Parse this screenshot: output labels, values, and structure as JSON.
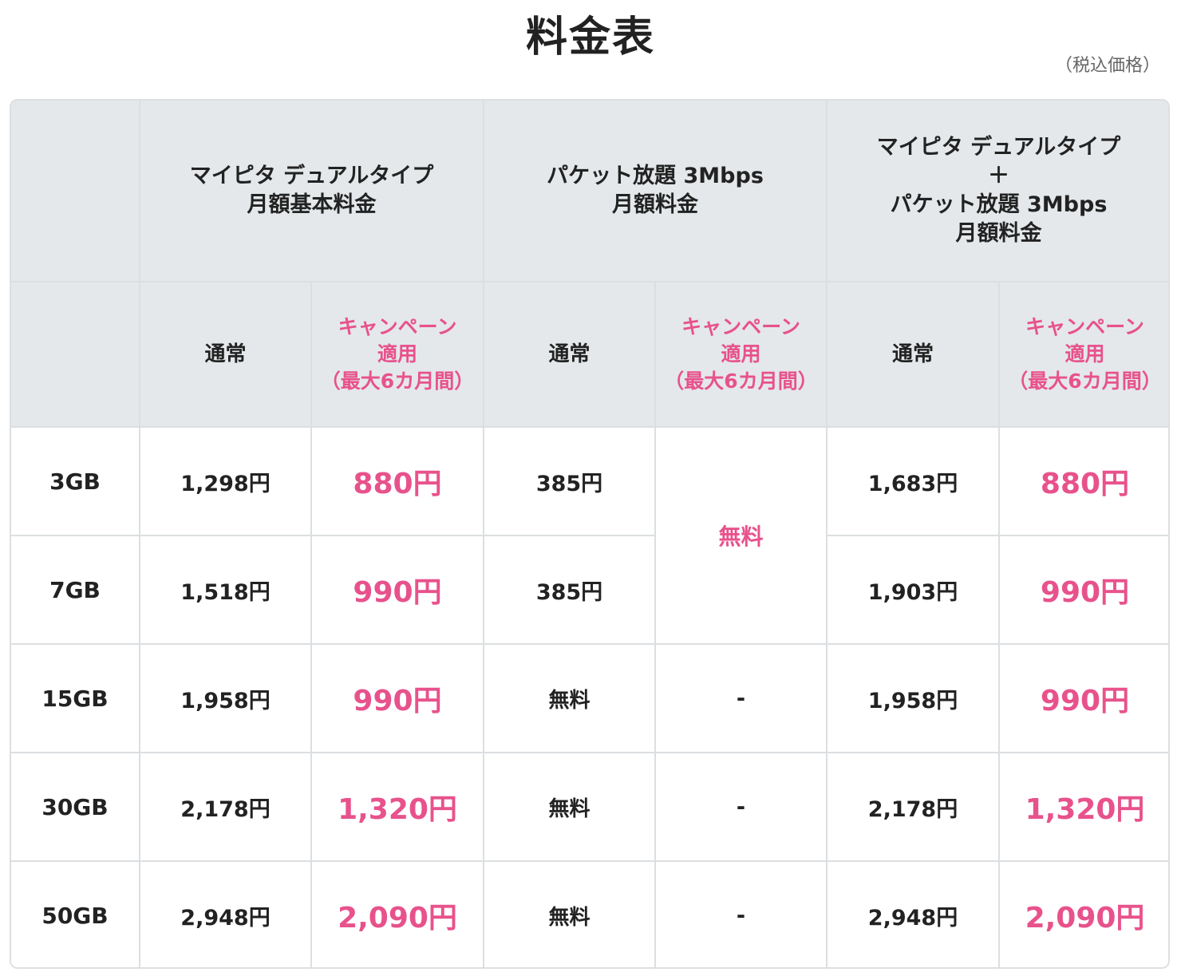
{
  "title": "料金表",
  "tax_note": "（税込価格）",
  "header": {
    "group_1": [
      "マイピタ デュアルタイプ",
      "月額基本料金"
    ],
    "group_2": [
      "パケット放題 3Mbps",
      "月額料金"
    ],
    "group_3": [
      "マイピタ デュアルタイプ",
      "＋",
      "パケット放題 3Mbps",
      "月額料金"
    ],
    "normal_label": "通常",
    "campaign_label": [
      "キャンペーン",
      "適用",
      "（最大6カ月間）"
    ]
  },
  "colors": {
    "accent_pink": "#e8528c",
    "header_bg": "#e4e8ea",
    "border": "#dcdfe1"
  },
  "rows": [
    {
      "plan": "3GB",
      "base_normal": "1,298円",
      "base_campaign": "880円",
      "packet_normal": "385円",
      "packet_campaign": "無料",
      "total_normal": "1,683円",
      "total_campaign": "880円"
    },
    {
      "plan": "7GB",
      "base_normal": "1,518円",
      "base_campaign": "990円",
      "packet_normal": "385円",
      "packet_campaign": "",
      "total_normal": "1,903円",
      "total_campaign": "990円"
    },
    {
      "plan": "15GB",
      "base_normal": "1,958円",
      "base_campaign": "990円",
      "packet_normal": "無料",
      "packet_campaign": "-",
      "total_normal": "1,958円",
      "total_campaign": "990円"
    },
    {
      "plan": "30GB",
      "base_normal": "2,178円",
      "base_campaign": "1,320円",
      "packet_normal": "無料",
      "packet_campaign": "-",
      "total_normal": "2,178円",
      "total_campaign": "1,320円"
    },
    {
      "plan": "50GB",
      "base_normal": "2,948円",
      "base_campaign": "2,090円",
      "packet_normal": "無料",
      "packet_campaign": "-",
      "total_normal": "2,948円",
      "total_campaign": "2,090円"
    }
  ]
}
